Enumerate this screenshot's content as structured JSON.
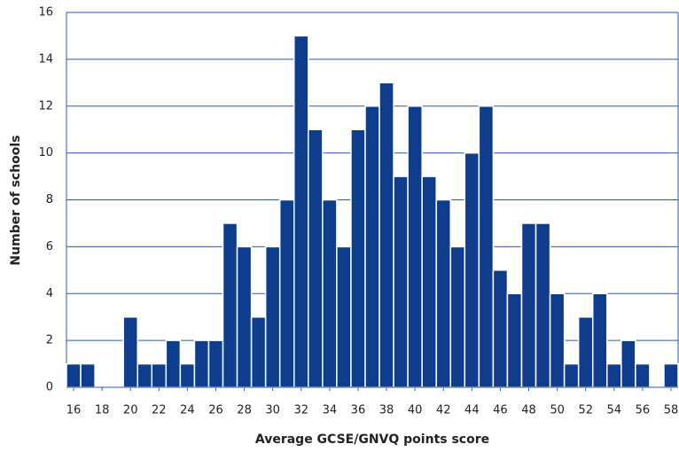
{
  "chart_data": {
    "type": "histogram",
    "x_label": "Average GCSE/GNVQ points score",
    "y_label": "Number of schools",
    "bins": [
      15.5,
      16.5,
      17.5,
      18.5,
      19.5,
      20.5,
      21.5,
      22.5,
      23.5,
      24.5,
      25.5,
      26.5,
      27.5,
      28.5,
      29.5,
      30.5,
      31.5,
      32.5,
      33.5,
      34.5,
      35.5,
      36.5,
      37.5,
      38.5,
      39.5,
      40.5,
      41.5,
      42.5,
      43.5,
      44.5,
      45.5,
      46.5,
      47.5,
      48.5,
      49.5,
      50.5,
      51.5,
      52.5,
      53.5,
      54.5,
      55.5,
      56.5,
      57.5,
      58.5
    ],
    "counts": [
      1,
      1,
      0,
      0,
      3,
      1,
      1,
      2,
      1,
      2,
      2,
      7,
      6,
      3,
      6,
      8,
      15,
      11,
      8,
      6,
      11,
      12,
      13,
      9,
      12,
      9,
      8,
      6,
      10,
      12,
      5,
      4,
      7,
      7,
      4,
      1,
      3,
      4,
      1,
      2,
      1,
      0,
      1
    ],
    "color": "#0d3d8c",
    "xlim": [
      15.5,
      58.5
    ],
    "xticks": [
      16,
      18,
      20,
      22,
      24,
      26,
      28,
      30,
      32,
      34,
      36,
      38,
      40,
      42,
      44,
      46,
      48,
      50,
      52,
      54,
      56,
      58
    ],
    "ylim": [
      0,
      16
    ],
    "yticks": [
      0,
      2,
      4,
      6,
      8,
      10,
      12,
      14,
      16
    ],
    "grid": true
  }
}
